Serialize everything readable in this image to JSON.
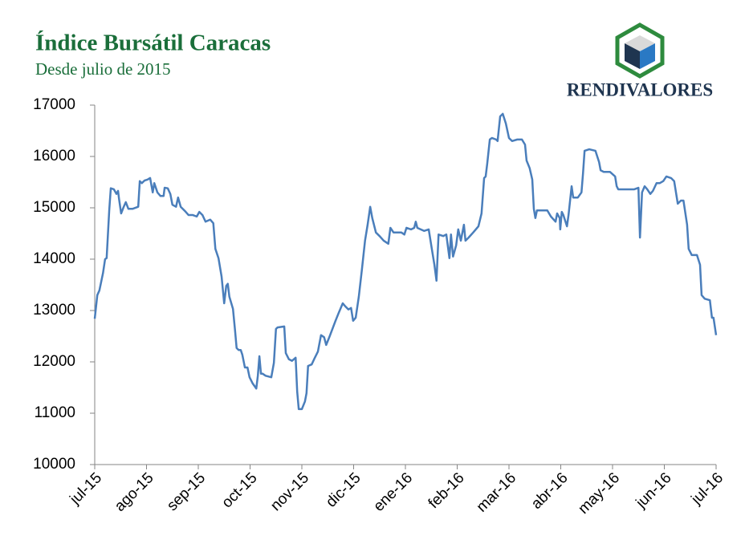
{
  "chart_data": {
    "type": "line",
    "title": "Índice Bursátil Caracas",
    "subtitle": "Desde julio de 2015",
    "brand": "RENDIVALORES",
    "color": "#4a7ebb",
    "xlim": [
      0,
      12
    ],
    "xticks": [
      {
        "value": 0,
        "label": "jul-15"
      },
      {
        "value": 1,
        "label": "ago-15"
      },
      {
        "value": 2,
        "label": "sep-15"
      },
      {
        "value": 3,
        "label": "oct-15"
      },
      {
        "value": 4,
        "label": "nov-15"
      },
      {
        "value": 5,
        "label": "dic-15"
      },
      {
        "value": 6,
        "label": "ene-16"
      },
      {
        "value": 7,
        "label": "feb-16"
      },
      {
        "value": 8,
        "label": "mar-16"
      },
      {
        "value": 9,
        "label": "abr-16"
      },
      {
        "value": 10,
        "label": "may-16"
      },
      {
        "value": 11,
        "label": "jun-16"
      },
      {
        "value": 12,
        "label": "jul-16"
      }
    ],
    "ylim": [
      10000,
      17000
    ],
    "yticks": [
      10000,
      11000,
      12000,
      13000,
      14000,
      15000,
      16000,
      17000
    ],
    "x": [
      0,
      0.05,
      0.09,
      0.16,
      0.2,
      0.23,
      0.28,
      0.31,
      0.37,
      0.42,
      0.45,
      0.47,
      0.51,
      0.56,
      0.6,
      0.65,
      0.73,
      0.84,
      0.87,
      0.91,
      0.96,
      1.02,
      1.07,
      1.12,
      1.15,
      1.21,
      1.27,
      1.33,
      1.35,
      1.41,
      1.46,
      1.5,
      1.57,
      1.61,
      1.66,
      1.74,
      1.81,
      1.89,
      1.97,
      2.02,
      2.08,
      2.14,
      2.23,
      2.29,
      2.33,
      2.39,
      2.45,
      2.5,
      2.54,
      2.57,
      2.6,
      2.67,
      2.71,
      2.74,
      2.78,
      2.82,
      2.85,
      2.9,
      2.95,
      2.99,
      3.05,
      3.12,
      3.15,
      3.18,
      3.21,
      3.24,
      3.3,
      3.41,
      3.46,
      3.5,
      3.53,
      3.66,
      3.69,
      3.75,
      3.81,
      3.88,
      3.91,
      3.94,
      4.0,
      4.06,
      4.09,
      4.12,
      4.19,
      4.25,
      4.31,
      4.37,
      4.43,
      4.47,
      4.53,
      4.59,
      4.65,
      4.71,
      4.79,
      4.84,
      4.9,
      4.95,
      4.99,
      5.04,
      5.1,
      5.16,
      5.22,
      5.27,
      5.32,
      5.36,
      5.43,
      5.5,
      5.58,
      5.67,
      5.71,
      5.77,
      5.92,
      5.98,
      6.02,
      6.11,
      6.17,
      6.2,
      6.23,
      6.36,
      6.45,
      6.51,
      6.56,
      6.6,
      6.64,
      6.73,
      6.79,
      6.85,
      6.88,
      6.92,
      6.98,
      7.02,
      7.07,
      7.13,
      7.16,
      7.22,
      7.31,
      7.41,
      7.47,
      7.52,
      7.55,
      7.58,
      7.63,
      7.67,
      7.75,
      7.78,
      7.83,
      7.88,
      7.94,
      8.0,
      8.06,
      8.16,
      8.25,
      8.31,
      8.34,
      8.4,
      8.45,
      8.48,
      8.51,
      8.54,
      8.65,
      8.74,
      8.81,
      8.9,
      8.93,
      8.98,
      8.99,
      9.02,
      9.05,
      9.12,
      9.15,
      9.21,
      9.24,
      9.33,
      9.4,
      9.43,
      9.46,
      9.55,
      9.67,
      9.74,
      9.77,
      9.83,
      9.95,
      10.05,
      10.08,
      10.11,
      10.26,
      10.42,
      10.5,
      10.53,
      10.57,
      10.62,
      10.67,
      10.73,
      10.78,
      10.85,
      10.91,
      10.98,
      11.04,
      11.13,
      11.19,
      11.26,
      11.32,
      11.37,
      11.44,
      11.47,
      11.53,
      11.63,
      11.69,
      11.72,
      11.78,
      11.88,
      11.92,
      11.95,
      12.0
    ],
    "values": [
      12840,
      13300,
      13390,
      13730,
      14000,
      14020,
      14950,
      15380,
      15360,
      15270,
      15330,
      15170,
      14890,
      15020,
      15110,
      14980,
      14980,
      15020,
      15520,
      15480,
      15530,
      15550,
      15580,
      15300,
      15480,
      15300,
      15230,
      15230,
      15390,
      15380,
      15270,
      15060,
      15020,
      15200,
      15020,
      14940,
      14860,
      14860,
      14830,
      14920,
      14860,
      14730,
      14770,
      14700,
      14200,
      14020,
      13660,
      13140,
      13480,
      13520,
      13270,
      13030,
      12610,
      12270,
      12230,
      12230,
      12140,
      11890,
      11890,
      11700,
      11580,
      11480,
      11730,
      12110,
      11770,
      11770,
      11730,
      11700,
      11980,
      12640,
      12670,
      12690,
      12170,
      12050,
      12020,
      12080,
      11420,
      11080,
      11080,
      11230,
      11390,
      11920,
      11950,
      12080,
      12200,
      12520,
      12480,
      12330,
      12480,
      12640,
      12800,
      12950,
      13140,
      13080,
      13020,
      13050,
      12800,
      12860,
      13270,
      13800,
      14360,
      14670,
      15020,
      14800,
      14520,
      14450,
      14360,
      14300,
      14610,
      14520,
      14520,
      14480,
      14610,
      14580,
      14610,
      14730,
      14610,
      14550,
      14580,
      14200,
      13890,
      13580,
      14480,
      14450,
      14480,
      14020,
      14480,
      14050,
      14270,
      14580,
      14360,
      14670,
      14360,
      14420,
      14520,
      14640,
      14890,
      15580,
      15610,
      15860,
      16330,
      16360,
      16330,
      16300,
      16780,
      16830,
      16640,
      16360,
      16300,
      16330,
      16330,
      16230,
      15920,
      15770,
      15550,
      14980,
      14800,
      14950,
      14950,
      14950,
      14830,
      14730,
      14890,
      14800,
      14580,
      14920,
      14860,
      14640,
      14860,
      15420,
      15200,
      15200,
      15300,
      15670,
      16110,
      16140,
      16110,
      15890,
      15730,
      15700,
      15700,
      15610,
      15420,
      15360,
      15360,
      15360,
      15390,
      14420,
      15300,
      15420,
      15360,
      15270,
      15330,
      15480,
      15480,
      15520,
      15610,
      15580,
      15520,
      15080,
      15140,
      15140,
      14670,
      14200,
      14080,
      14080,
      13890,
      13300,
      13230,
      13200,
      12860,
      12860,
      12520
    ]
  }
}
